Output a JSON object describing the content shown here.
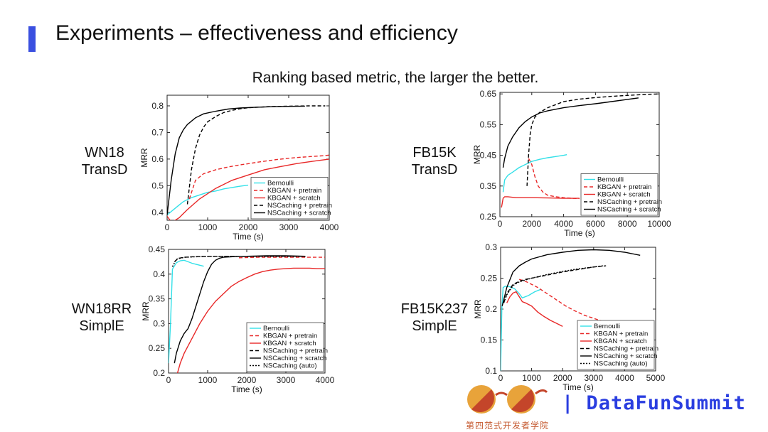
{
  "slide": {
    "title": "Experiments – effectiveness and efficiency",
    "subtitle": "Ranking based metric, the larger the better."
  },
  "brand": {
    "name": "| DataFunSummit",
    "tagline": "第四范式开发者学院"
  },
  "colors": {
    "accent": "#3a4fe0",
    "bernoulli": "#33e0e8",
    "kbgan": "#e82828",
    "nscaching": "#000000",
    "brand": "#2a3ee0"
  },
  "chart_data": [
    {
      "type": "line",
      "label_lines": [
        "WN18",
        "TransD"
      ],
      "xlabel": "Time (s)",
      "ylabel": "MRR",
      "xlim": [
        0,
        4000
      ],
      "ylim": [
        0.37,
        0.84
      ],
      "xticks": [
        0,
        1000,
        2000,
        3000,
        4000
      ],
      "yticks": [
        0.4,
        0.5,
        0.6,
        0.7,
        0.8
      ],
      "legend_position": "bottom-right",
      "series": [
        {
          "name": "Bernoulli",
          "color": "#33e0e8",
          "dash": "solid",
          "x": [
            0,
            200,
            400,
            600,
            800,
            1000,
            1200,
            1400,
            1600,
            1800,
            2000
          ],
          "y": [
            0.39,
            0.415,
            0.44,
            0.455,
            0.465,
            0.475,
            0.48,
            0.488,
            0.493,
            0.498,
            0.502
          ]
        },
        {
          "name": "KBGAN + pretrain",
          "color": "#e82828",
          "dash": "dashed",
          "x": [
            550,
            700,
            900,
            1200,
            1500,
            1800,
            2100,
            2400,
            2700,
            3000,
            3300,
            3600,
            3900,
            4000
          ],
          "y": [
            0.45,
            0.52,
            0.545,
            0.56,
            0.57,
            0.578,
            0.585,
            0.592,
            0.598,
            0.603,
            0.607,
            0.61,
            0.613,
            0.615
          ]
        },
        {
          "name": "KBGAN + scratch",
          "color": "#e82828",
          "dash": "solid",
          "x": [
            0,
            100,
            200,
            300,
            500,
            800,
            1200,
            1600,
            2000,
            2400,
            2800,
            3200,
            3600,
            4000
          ],
          "y": [
            0.385,
            0.365,
            0.37,
            0.38,
            0.41,
            0.45,
            0.49,
            0.52,
            0.54,
            0.56,
            0.572,
            0.583,
            0.592,
            0.6
          ]
        },
        {
          "name": "NSCaching + pretrain",
          "color": "#000000",
          "dash": "dashed",
          "x": [
            500,
            600,
            700,
            800,
            900,
            1000,
            1200,
            1400,
            1600,
            1800,
            2000,
            2500,
            3000,
            3500,
            3900
          ],
          "y": [
            0.43,
            0.56,
            0.64,
            0.69,
            0.72,
            0.74,
            0.76,
            0.775,
            0.783,
            0.789,
            0.793,
            0.797,
            0.799,
            0.8,
            0.8
          ]
        },
        {
          "name": "NSCaching + scratch",
          "color": "#000000",
          "dash": "solid",
          "x": [
            0,
            100,
            200,
            300,
            400,
            500,
            700,
            900,
            1200,
            1500,
            1800,
            2200,
            2600,
            3000,
            3400
          ],
          "y": [
            0.39,
            0.52,
            0.62,
            0.68,
            0.71,
            0.73,
            0.755,
            0.77,
            0.78,
            0.788,
            0.792,
            0.795,
            0.797,
            0.798,
            0.799
          ]
        }
      ]
    },
    {
      "type": "line",
      "label_lines": [
        "FB15K",
        "TransD"
      ],
      "xlabel": "Time (s)",
      "ylabel": "MRR",
      "xlim": [
        0,
        10000
      ],
      "ylim": [
        0.25,
        0.655
      ],
      "xticks": [
        0,
        2000,
        4000,
        6000,
        8000,
        10000
      ],
      "yticks": [
        0.25,
        0.35,
        0.45,
        0.55,
        0.65
      ],
      "legend_position": "bottom-right",
      "series": [
        {
          "name": "Bernoulli",
          "color": "#33e0e8",
          "dash": "solid",
          "x": [
            200,
            300,
            500,
            800,
            1200,
            1600,
            2000,
            2500,
            3000,
            3500,
            4000,
            4200
          ],
          "y": [
            0.33,
            0.37,
            0.385,
            0.395,
            0.41,
            0.42,
            0.43,
            0.437,
            0.442,
            0.446,
            0.45,
            0.452
          ]
        },
        {
          "name": "KBGAN + pretrain",
          "color": "#e82828",
          "dash": "dashed",
          "x": [
            1800,
            1900,
            2000,
            2200,
            2400,
            2700,
            3000,
            3500,
            4000,
            4500,
            5000
          ],
          "y": [
            0.44,
            0.43,
            0.42,
            0.38,
            0.35,
            0.33,
            0.32,
            0.315,
            0.312,
            0.31,
            0.309
          ]
        },
        {
          "name": "KBGAN + scratch",
          "color": "#e82828",
          "dash": "solid",
          "x": [
            100,
            200,
            300,
            500,
            1000,
            2000,
            3000,
            4000,
            5000
          ],
          "y": [
            0.28,
            0.31,
            0.315,
            0.315,
            0.312,
            0.312,
            0.311,
            0.31,
            0.31
          ]
        },
        {
          "name": "NSCaching + pretrain",
          "color": "#000000",
          "dash": "dashed",
          "x": [
            1700,
            1800,
            1900,
            2000,
            2200,
            2500,
            3000,
            3500,
            4000,
            5000,
            6000,
            7000,
            8000,
            9000,
            10000
          ],
          "y": [
            0.35,
            0.45,
            0.52,
            0.55,
            0.575,
            0.59,
            0.605,
            0.615,
            0.625,
            0.633,
            0.638,
            0.642,
            0.645,
            0.648,
            0.65
          ]
        },
        {
          "name": "NSCaching + scratch",
          "color": "#000000",
          "dash": "solid",
          "x": [
            200,
            300,
            500,
            800,
            1200,
            1600,
            2000,
            2500,
            3000,
            4000,
            5000,
            6000,
            7000,
            8000,
            8700
          ],
          "y": [
            0.41,
            0.44,
            0.48,
            0.51,
            0.54,
            0.56,
            0.575,
            0.588,
            0.595,
            0.605,
            0.612,
            0.618,
            0.625,
            0.632,
            0.637
          ]
        }
      ]
    },
    {
      "type": "line",
      "label_lines": [
        "WN18RR",
        "SimplE"
      ],
      "xlabel": "Time (s)",
      "ylabel": "MRR",
      "xlim": [
        0,
        4000
      ],
      "ylim": [
        0.2,
        0.45
      ],
      "xticks": [
        0,
        1000,
        2000,
        3000,
        4000
      ],
      "yticks": [
        0.2,
        0.25,
        0.3,
        0.35,
        0.4,
        0.45
      ],
      "legend_position": "bottom-right",
      "series": [
        {
          "name": "Bernoulli",
          "color": "#33e0e8",
          "dash": "solid",
          "x": [
            0,
            50,
            100,
            200,
            300,
            400,
            500,
            600,
            700,
            800,
            900
          ],
          "y": [
            0.22,
            0.3,
            0.41,
            0.423,
            0.427,
            0.428,
            0.425,
            0.422,
            0.42,
            0.418,
            0.416
          ]
        },
        {
          "name": "KBGAN + pretrain",
          "color": "#e82828",
          "dash": "dashed",
          "x": [
            1800,
            2200,
            2600,
            3000,
            3400,
            3800,
            4000
          ],
          "y": [
            0.433,
            0.434,
            0.434,
            0.434,
            0.434,
            0.434,
            0.434
          ]
        },
        {
          "name": "KBGAN + scratch",
          "color": "#e82828",
          "dash": "solid",
          "x": [
            230,
            300,
            400,
            600,
            800,
            1000,
            1200,
            1400,
            1600,
            1800,
            2000,
            2200,
            2400,
            2600,
            2800,
            3000,
            3200,
            3400,
            3600,
            3800,
            4000
          ],
          "y": [
            0.2,
            0.22,
            0.24,
            0.27,
            0.3,
            0.325,
            0.345,
            0.36,
            0.375,
            0.385,
            0.393,
            0.4,
            0.405,
            0.408,
            0.41,
            0.411,
            0.412,
            0.412,
            0.412,
            0.411,
            0.411
          ]
        },
        {
          "name": "NSCaching + pretrain",
          "color": "#000000",
          "dash": "dashed",
          "x": [
            150,
            250,
            400,
            600,
            1000,
            1500,
            2000,
            2500,
            3000,
            3500
          ],
          "y": [
            0.425,
            0.432,
            0.434,
            0.435,
            0.436,
            0.436,
            0.436,
            0.436,
            0.436,
            0.436
          ]
        },
        {
          "name": "NSCaching + scratch",
          "color": "#000000",
          "dash": "solid",
          "x": [
            150,
            200,
            300,
            400,
            500,
            600,
            700,
            800,
            900,
            1000,
            1100,
            1200,
            1300,
            1400,
            1600,
            1800,
            2000,
            2500,
            3000,
            3500
          ],
          "y": [
            0.22,
            0.24,
            0.265,
            0.28,
            0.29,
            0.31,
            0.335,
            0.36,
            0.385,
            0.405,
            0.42,
            0.428,
            0.432,
            0.434,
            0.435,
            0.436,
            0.436,
            0.437,
            0.437,
            0.436
          ]
        },
        {
          "name": "NSCaching (auto)",
          "color": "#000000",
          "dash": "dotted",
          "x": [
            100,
            200,
            400,
            700,
            1000,
            1500,
            2000,
            2500,
            3000,
            3500
          ],
          "y": [
            0.415,
            0.43,
            0.434,
            0.435,
            0.436,
            0.436,
            0.436,
            0.436,
            0.436,
            0.436
          ]
        }
      ]
    },
    {
      "type": "line",
      "label_lines": [
        "FB15K237",
        "SimplE"
      ],
      "xlabel": "Time (s)",
      "ylabel": "MRR",
      "xlim": [
        0,
        5000
      ],
      "ylim": [
        0.1,
        0.3
      ],
      "xticks": [
        0,
        1000,
        2000,
        3000,
        4000,
        5000
      ],
      "yticks": [
        0.1,
        0.15,
        0.2,
        0.25,
        0.3
      ],
      "legend_position": "bottom-right",
      "series": [
        {
          "name": "Bernoulli",
          "color": "#33e0e8",
          "dash": "solid",
          "x": [
            0,
            40,
            80,
            150,
            300,
            450,
            600,
            700,
            900,
            1100,
            1300
          ],
          "y": [
            0.1,
            0.2,
            0.235,
            0.237,
            0.236,
            0.233,
            0.225,
            0.218,
            0.222,
            0.228,
            0.232
          ]
        },
        {
          "name": "KBGAN + pretrain",
          "color": "#e82828",
          "dash": "dashed",
          "x": [
            600,
            800,
            1000,
            1200,
            1500,
            1800,
            2100,
            2400,
            2700,
            3000,
            3300,
            3600,
            3900
          ],
          "y": [
            0.248,
            0.245,
            0.24,
            0.235,
            0.225,
            0.215,
            0.205,
            0.197,
            0.19,
            0.185,
            0.18,
            0.177,
            0.175
          ]
        },
        {
          "name": "KBGAN + scratch",
          "color": "#e82828",
          "dash": "solid",
          "x": [
            200,
            300,
            400,
            500,
            600,
            700,
            800,
            1000,
            1200,
            1400,
            1600,
            1800,
            2000
          ],
          "y": [
            0.21,
            0.22,
            0.226,
            0.228,
            0.22,
            0.212,
            0.21,
            0.205,
            0.195,
            0.188,
            0.182,
            0.177,
            0.172
          ]
        },
        {
          "name": "NSCaching + pretrain",
          "color": "#000000",
          "dash": "dashed",
          "x": [
            100,
            200,
            400,
            600,
            800,
            1000,
            1500,
            2000,
            2500,
            3000,
            3400
          ],
          "y": [
            0.21,
            0.225,
            0.24,
            0.245,
            0.248,
            0.25,
            0.255,
            0.26,
            0.264,
            0.268,
            0.27
          ]
        },
        {
          "name": "NSCaching + scratch",
          "color": "#000000",
          "dash": "solid",
          "x": [
            50,
            100,
            200,
            400,
            600,
            800,
            1000,
            1500,
            2000,
            2500,
            3000,
            3500,
            4000,
            4500
          ],
          "y": [
            0.205,
            0.215,
            0.235,
            0.26,
            0.27,
            0.276,
            0.281,
            0.288,
            0.292,
            0.295,
            0.296,
            0.295,
            0.292,
            0.287
          ]
        },
        {
          "name": "NSCaching (auto)",
          "color": "#000000",
          "dash": "dotted",
          "x": [
            100,
            200,
            400,
            600,
            800,
            1000,
            1500,
            2000,
            2500,
            3000,
            3300
          ],
          "y": [
            0.21,
            0.223,
            0.238,
            0.244,
            0.247,
            0.25,
            0.256,
            0.261,
            0.265,
            0.268,
            0.27
          ]
        }
      ]
    }
  ]
}
